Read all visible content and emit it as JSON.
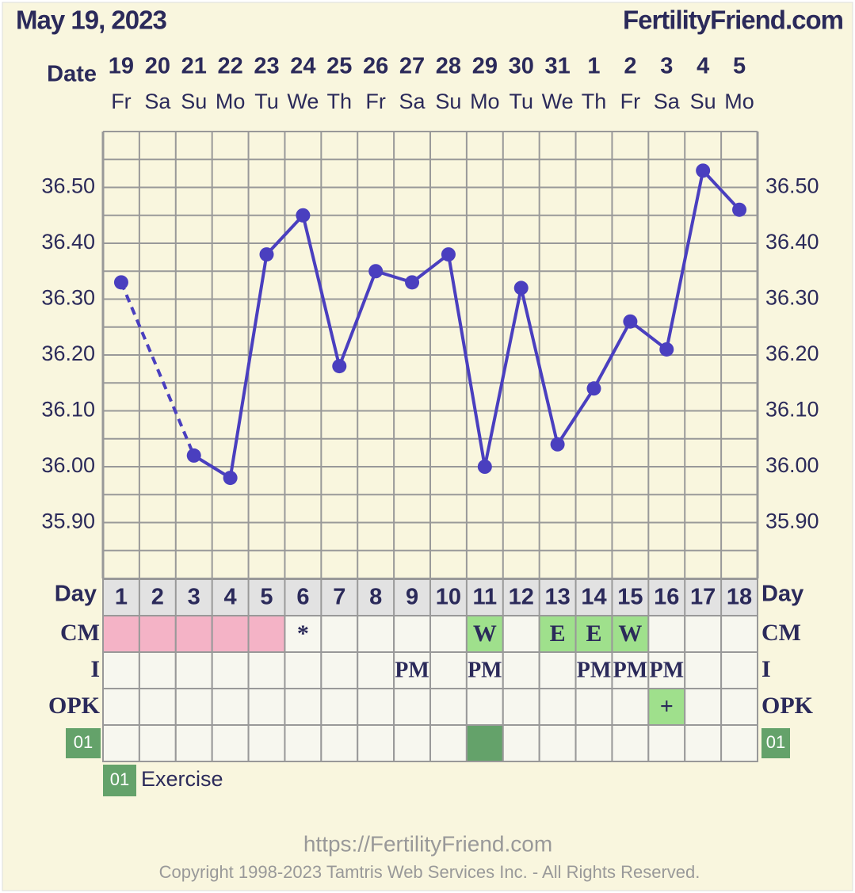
{
  "chart_data": {
    "type": "line",
    "title": "May 19, 2023",
    "site": "FertilityFriend.com",
    "date_label": "Date",
    "dates": [
      "19",
      "20",
      "21",
      "22",
      "23",
      "24",
      "25",
      "26",
      "27",
      "28",
      "29",
      "30",
      "31",
      "1",
      "2",
      "3",
      "4",
      "5"
    ],
    "weekdays": [
      "Fr",
      "Sa",
      "Su",
      "Mo",
      "Tu",
      "We",
      "Th",
      "Fr",
      "Sa",
      "Su",
      "Mo",
      "Tu",
      "We",
      "Th",
      "Fr",
      "Sa",
      "Su",
      "Mo"
    ],
    "x_label": "Day",
    "x": [
      1,
      2,
      3,
      4,
      5,
      6,
      7,
      8,
      9,
      10,
      11,
      12,
      13,
      14,
      15,
      16,
      17,
      18
    ],
    "xlim": [
      0.5,
      18.5
    ],
    "series": [
      {
        "color": "#4a3fbf",
        "values": [
          36.33,
          null,
          36.02,
          35.98,
          36.38,
          36.45,
          36.18,
          36.35,
          36.33,
          36.38,
          36.0,
          36.32,
          36.04,
          36.14,
          36.26,
          36.21,
          36.53,
          36.46
        ]
      }
    ],
    "ylim": [
      35.8,
      36.6
    ],
    "minor_grid_step": 0.05,
    "yticks": [
      {
        "value": 35.9,
        "label": "35.90"
      },
      {
        "value": 36.0,
        "label": "36.00"
      },
      {
        "value": 36.1,
        "label": "36.10"
      },
      {
        "value": 36.2,
        "label": "36.20"
      },
      {
        "value": 36.3,
        "label": "36.30"
      },
      {
        "value": 36.4,
        "label": "36.40"
      },
      {
        "value": 36.5,
        "label": "36.50"
      }
    ],
    "rows": [
      {
        "label": "CM",
        "cells": [
          {
            "color": "#f4b3c6"
          },
          {
            "color": "#f4b3c6"
          },
          {
            "color": "#f4b3c6"
          },
          {
            "color": "#f4b3c6"
          },
          {
            "color": "#f4b3c6"
          },
          {
            "text": "*"
          },
          null,
          null,
          null,
          null,
          {
            "text": "W",
            "color": "#9fe08c"
          },
          null,
          {
            "text": "E",
            "color": "#9fe08c"
          },
          {
            "text": "E",
            "color": "#9fe08c"
          },
          {
            "text": "W",
            "color": "#9fe08c"
          },
          null,
          null,
          null
        ]
      },
      {
        "label": "I",
        "cells": [
          null,
          null,
          null,
          null,
          null,
          null,
          null,
          null,
          {
            "text": "PM"
          },
          null,
          {
            "text": "PM"
          },
          null,
          null,
          {
            "text": "PM"
          },
          {
            "text": "PM"
          },
          {
            "text": "PM"
          },
          null,
          null
        ]
      },
      {
        "label": "OPK",
        "cells": [
          null,
          null,
          null,
          null,
          null,
          null,
          null,
          null,
          null,
          null,
          null,
          null,
          null,
          null,
          null,
          {
            "text": "+",
            "color": "#9fe08c"
          },
          null,
          null
        ]
      },
      {
        "label": "01",
        "label_color": "#64a26a",
        "cells": [
          null,
          null,
          null,
          null,
          null,
          null,
          null,
          null,
          null,
          null,
          {
            "color": "#64a26a"
          },
          null,
          null,
          null,
          null,
          null,
          null,
          null
        ]
      }
    ],
    "legend": [
      {
        "code": "01",
        "text": "Exercise",
        "color": "#64a26a"
      }
    ],
    "url": "https://FertilityFriend.com",
    "copyright": "Copyright 1998-2023 Tamtris Web Services Inc. - All Rights Reserved."
  }
}
